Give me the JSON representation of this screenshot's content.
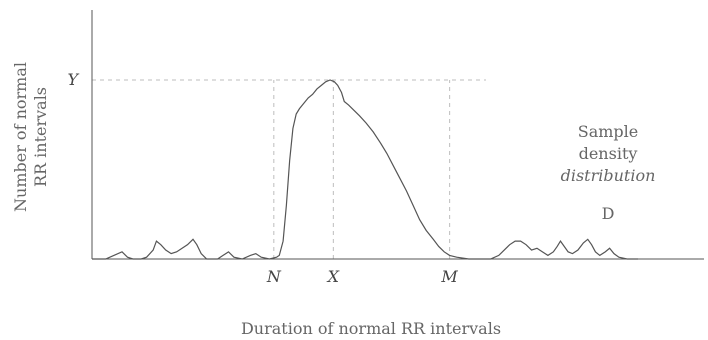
{
  "chart_data": {
    "type": "area",
    "title": "",
    "xlabel": "Duration of normal RR intervals",
    "ylabel": [
      "Number of normal",
      "RR intervals"
    ],
    "x_ticks": [
      {
        "label": "N",
        "x": 0.333
      },
      {
        "label": "X",
        "x": 0.442
      },
      {
        "label": "M",
        "x": 0.655
      }
    ],
    "y_ticks": [
      {
        "label": "Y",
        "y": 1.0
      }
    ],
    "annotations": [
      {
        "lines": [
          "Sample",
          "density",
          "distribution"
        ],
        "italic_line": 2
      },
      {
        "text": "D"
      }
    ],
    "xlim": [
      0,
      1
    ],
    "ylim": [
      0,
      1
    ],
    "grid": false,
    "series": [
      {
        "values": [
          [
            0.0,
            0.0
          ],
          [
            0.025,
            0.0
          ],
          [
            0.04,
            0.02
          ],
          [
            0.055,
            0.04
          ],
          [
            0.065,
            0.01
          ],
          [
            0.075,
            0.0
          ],
          [
            0.09,
            0.0
          ],
          [
            0.1,
            0.01
          ],
          [
            0.112,
            0.05
          ],
          [
            0.118,
            0.1
          ],
          [
            0.126,
            0.08
          ],
          [
            0.135,
            0.05
          ],
          [
            0.145,
            0.03
          ],
          [
            0.155,
            0.04
          ],
          [
            0.165,
            0.06
          ],
          [
            0.175,
            0.08
          ],
          [
            0.185,
            0.11
          ],
          [
            0.192,
            0.08
          ],
          [
            0.2,
            0.03
          ],
          [
            0.21,
            0.0
          ],
          [
            0.23,
            0.0
          ],
          [
            0.24,
            0.02
          ],
          [
            0.25,
            0.04
          ],
          [
            0.26,
            0.01
          ],
          [
            0.275,
            0.0
          ],
          [
            0.29,
            0.02
          ],
          [
            0.3,
            0.03
          ],
          [
            0.31,
            0.01
          ],
          [
            0.325,
            0.0
          ],
          [
            0.338,
            0.01
          ],
          [
            0.343,
            0.02
          ],
          [
            0.35,
            0.1
          ],
          [
            0.356,
            0.3
          ],
          [
            0.362,
            0.55
          ],
          [
            0.368,
            0.73
          ],
          [
            0.374,
            0.81
          ],
          [
            0.38,
            0.84
          ],
          [
            0.388,
            0.87
          ],
          [
            0.396,
            0.9
          ],
          [
            0.404,
            0.92
          ],
          [
            0.412,
            0.95
          ],
          [
            0.42,
            0.97
          ],
          [
            0.428,
            0.99
          ],
          [
            0.436,
            1.0
          ],
          [
            0.444,
            0.99
          ],
          [
            0.45,
            0.97
          ],
          [
            0.457,
            0.93
          ],
          [
            0.462,
            0.88
          ],
          [
            0.47,
            0.86
          ],
          [
            0.48,
            0.83
          ],
          [
            0.49,
            0.8
          ],
          [
            0.502,
            0.76
          ],
          [
            0.515,
            0.71
          ],
          [
            0.528,
            0.65
          ],
          [
            0.54,
            0.59
          ],
          [
            0.552,
            0.52
          ],
          [
            0.564,
            0.45
          ],
          [
            0.576,
            0.38
          ],
          [
            0.588,
            0.3
          ],
          [
            0.6,
            0.22
          ],
          [
            0.612,
            0.16
          ],
          [
            0.625,
            0.11
          ],
          [
            0.635,
            0.07
          ],
          [
            0.645,
            0.04
          ],
          [
            0.655,
            0.02
          ],
          [
            0.668,
            0.01
          ],
          [
            0.69,
            0.0
          ],
          [
            0.73,
            0.0
          ],
          [
            0.745,
            0.02
          ],
          [
            0.755,
            0.05
          ],
          [
            0.765,
            0.08
          ],
          [
            0.775,
            0.1
          ],
          [
            0.785,
            0.1
          ],
          [
            0.795,
            0.08
          ],
          [
            0.805,
            0.05
          ],
          [
            0.815,
            0.06
          ],
          [
            0.825,
            0.04
          ],
          [
            0.835,
            0.02
          ],
          [
            0.845,
            0.04
          ],
          [
            0.852,
            0.07
          ],
          [
            0.858,
            0.1
          ],
          [
            0.865,
            0.07
          ],
          [
            0.872,
            0.04
          ],
          [
            0.88,
            0.03
          ],
          [
            0.89,
            0.05
          ],
          [
            0.9,
            0.09
          ],
          [
            0.908,
            0.11
          ],
          [
            0.915,
            0.08
          ],
          [
            0.922,
            0.04
          ],
          [
            0.93,
            0.02
          ],
          [
            0.94,
            0.04
          ],
          [
            0.948,
            0.06
          ],
          [
            0.956,
            0.03
          ],
          [
            0.965,
            0.01
          ],
          [
            0.98,
            0.0
          ],
          [
            1.0,
            0.0
          ]
        ]
      }
    ],
    "colors": {
      "curve": "#555555",
      "axis": "#555555",
      "guide": "#bdbdbd"
    }
  }
}
